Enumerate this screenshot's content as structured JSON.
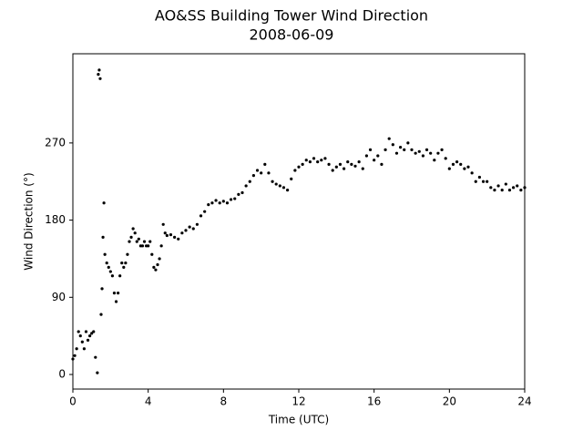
{
  "chart_data": {
    "type": "scatter",
    "title": "AO&SS Building Tower Wind Direction",
    "subtitle": "2008-06-09",
    "x_label": "Time (UTC)",
    "y_label": "Wind Direction (°)",
    "color": "#000000",
    "xlim": [
      0,
      24
    ],
    "xticks": [
      0,
      4,
      8,
      12,
      16,
      20,
      24
    ],
    "ylim": [
      -17,
      374
    ],
    "yticks": [
      0,
      90,
      180,
      270
    ],
    "x": [
      0.0,
      0.1,
      0.2,
      0.3,
      0.4,
      0.5,
      0.6,
      0.7,
      0.8,
      0.9,
      1.0,
      1.1,
      1.2,
      1.3,
      1.35,
      1.4,
      1.45,
      1.5,
      1.55,
      1.6,
      1.65,
      1.7,
      1.8,
      1.9,
      2.0,
      2.1,
      2.2,
      2.3,
      2.4,
      2.5,
      2.6,
      2.7,
      2.8,
      2.9,
      3.0,
      3.1,
      3.2,
      3.3,
      3.4,
      3.5,
      3.6,
      3.7,
      3.8,
      3.9,
      4.0,
      4.1,
      4.2,
      4.3,
      4.4,
      4.5,
      4.6,
      4.7,
      4.8,
      4.9,
      5.0,
      5.2,
      5.4,
      5.6,
      5.8,
      6.0,
      6.2,
      6.4,
      6.6,
      6.8,
      7.0,
      7.2,
      7.4,
      7.6,
      7.8,
      8.0,
      8.2,
      8.4,
      8.6,
      8.8,
      9.0,
      9.2,
      9.4,
      9.6,
      9.8,
      10.0,
      10.2,
      10.4,
      10.6,
      10.8,
      11.0,
      11.2,
      11.4,
      11.6,
      11.8,
      12.0,
      12.2,
      12.4,
      12.6,
      12.8,
      13.0,
      13.2,
      13.4,
      13.6,
      13.8,
      14.0,
      14.2,
      14.4,
      14.6,
      14.8,
      15.0,
      15.2,
      15.4,
      15.6,
      15.8,
      16.0,
      16.2,
      16.4,
      16.6,
      16.8,
      17.0,
      17.2,
      17.4,
      17.6,
      17.8,
      18.0,
      18.2,
      18.4,
      18.6,
      18.8,
      19.0,
      19.2,
      19.4,
      19.6,
      19.8,
      20.0,
      20.2,
      20.4,
      20.6,
      20.8,
      21.0,
      21.2,
      21.4,
      21.6,
      21.8,
      22.0,
      22.2,
      22.4,
      22.6,
      22.8,
      23.0,
      23.2,
      23.4,
      23.6,
      23.8,
      24.0
    ],
    "values": [
      18,
      22,
      30,
      50,
      45,
      38,
      30,
      50,
      40,
      45,
      48,
      50,
      20,
      2,
      350,
      355,
      345,
      70,
      100,
      160,
      200,
      140,
      130,
      125,
      120,
      115,
      95,
      85,
      95,
      115,
      130,
      125,
      130,
      140,
      155,
      160,
      170,
      165,
      155,
      158,
      150,
      150,
      155,
      150,
      150,
      155,
      140,
      125,
      122,
      128,
      135,
      150,
      175,
      165,
      162,
      163,
      160,
      158,
      165,
      168,
      172,
      170,
      175,
      185,
      190,
      198,
      200,
      203,
      200,
      202,
      200,
      204,
      205,
      210,
      212,
      220,
      225,
      232,
      238,
      235,
      245,
      235,
      225,
      222,
      220,
      218,
      215,
      228,
      238,
      242,
      245,
      250,
      248,
      252,
      248,
      250,
      252,
      245,
      238,
      242,
      245,
      240,
      248,
      245,
      243,
      248,
      240,
      255,
      262,
      250,
      255,
      245,
      262,
      275,
      268,
      258,
      265,
      262,
      270,
      262,
      258,
      260,
      255,
      262,
      258,
      250,
      258,
      262,
      252,
      240,
      245,
      248,
      245,
      240,
      242,
      235,
      225,
      230,
      225,
      225,
      218,
      215,
      220,
      215,
      222,
      215,
      218,
      220,
      215,
      218
    ]
  }
}
